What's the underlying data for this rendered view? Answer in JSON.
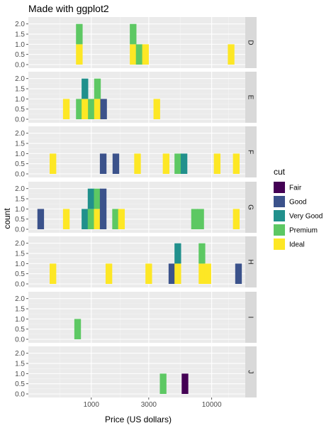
{
  "chart_data": {
    "type": "bar",
    "subtype": "faceted stacked histogram",
    "title": "Made with ggplot2",
    "xlabel": "Price (US dollars)",
    "ylabel": "count",
    "x_scale": "log10",
    "xlim": [
      300,
      19000
    ],
    "x_ticks": [
      1000,
      3000,
      10000
    ],
    "x_tick_labels": [
      "1000",
      "3000",
      "10000"
    ],
    "ylim": [
      0,
      2.2
    ],
    "y_ticks": [
      0,
      0.5,
      1,
      1.5,
      2
    ],
    "y_tick_labels": [
      "0.0",
      "0.5",
      "1.0",
      "1.5",
      "2.0"
    ],
    "facets": [
      "D",
      "E",
      "F",
      "G",
      "H",
      "I",
      "J"
    ],
    "bin_width_log10": 0.055,
    "legend": {
      "title": "cut",
      "position": "right",
      "items": [
        {
          "label": "Fair",
          "color": "#440154"
        },
        {
          "label": "Good",
          "color": "#3B528B"
        },
        {
          "label": "Very Good",
          "color": "#21908C"
        },
        {
          "label": "Premium",
          "color": "#5DC863"
        },
        {
          "label": "Ideal",
          "color": "#FDE725"
        }
      ]
    },
    "series": [
      {
        "facet": "D",
        "price": 795,
        "counts": {
          "Fair": 0,
          "Good": 0,
          "Very Good": 0,
          "Premium": 1,
          "Ideal": 1
        }
      },
      {
        "facet": "D",
        "price": 2225,
        "counts": {
          "Fair": 0,
          "Good": 0,
          "Very Good": 0,
          "Premium": 1,
          "Ideal": 1
        }
      },
      {
        "facet": "D",
        "price": 2500,
        "counts": {
          "Fair": 0,
          "Good": 0,
          "Very Good": 0,
          "Premium": 1,
          "Ideal": 0
        }
      },
      {
        "facet": "D",
        "price": 2820,
        "counts": {
          "Fair": 0,
          "Good": 0,
          "Very Good": 0,
          "Premium": 0,
          "Ideal": 1
        }
      },
      {
        "facet": "D",
        "price": 14500,
        "counts": {
          "Fair": 0,
          "Good": 0,
          "Very Good": 0,
          "Premium": 0,
          "Ideal": 1
        }
      },
      {
        "facet": "E",
        "price": 620,
        "counts": {
          "Fair": 0,
          "Good": 0,
          "Very Good": 0,
          "Premium": 0,
          "Ideal": 1
        }
      },
      {
        "facet": "E",
        "price": 795,
        "counts": {
          "Fair": 0,
          "Good": 0,
          "Very Good": 0,
          "Premium": 1,
          "Ideal": 0
        }
      },
      {
        "facet": "E",
        "price": 885,
        "counts": {
          "Fair": 0,
          "Good": 0,
          "Very Good": 1,
          "Premium": 0,
          "Ideal": 1
        }
      },
      {
        "facet": "E",
        "price": 1000,
        "counts": {
          "Fair": 0,
          "Good": 0,
          "Very Good": 0,
          "Premium": 1,
          "Ideal": 0
        }
      },
      {
        "facet": "E",
        "price": 1125,
        "counts": {
          "Fair": 0,
          "Good": 0,
          "Very Good": 0,
          "Premium": 1,
          "Ideal": 1
        }
      },
      {
        "facet": "E",
        "price": 1265,
        "counts": {
          "Fair": 0,
          "Good": 1,
          "Very Good": 0,
          "Premium": 0,
          "Ideal": 0
        }
      },
      {
        "facet": "E",
        "price": 3500,
        "counts": {
          "Fair": 0,
          "Good": 0,
          "Very Good": 0,
          "Premium": 0,
          "Ideal": 1
        }
      },
      {
        "facet": "F",
        "price": 480,
        "counts": {
          "Fair": 0,
          "Good": 0,
          "Very Good": 0,
          "Premium": 0,
          "Ideal": 1
        }
      },
      {
        "facet": "F",
        "price": 1255,
        "counts": {
          "Fair": 0,
          "Good": 1,
          "Very Good": 0,
          "Premium": 0,
          "Ideal": 0
        }
      },
      {
        "facet": "F",
        "price": 1600,
        "counts": {
          "Fair": 0,
          "Good": 1,
          "Very Good": 0,
          "Premium": 0,
          "Ideal": 0
        }
      },
      {
        "facet": "F",
        "price": 2420,
        "counts": {
          "Fair": 0,
          "Good": 0,
          "Very Good": 0,
          "Premium": 0,
          "Ideal": 1
        }
      },
      {
        "facet": "F",
        "price": 4180,
        "counts": {
          "Fair": 0,
          "Good": 0,
          "Very Good": 0,
          "Premium": 0,
          "Ideal": 1
        }
      },
      {
        "facet": "F",
        "price": 5230,
        "counts": {
          "Fair": 0,
          "Good": 0,
          "Very Good": 0,
          "Premium": 1,
          "Ideal": 0
        }
      },
      {
        "facet": "F",
        "price": 5890,
        "counts": {
          "Fair": 0,
          "Good": 0,
          "Very Good": 1,
          "Premium": 0,
          "Ideal": 0
        }
      },
      {
        "facet": "F",
        "price": 11100,
        "counts": {
          "Fair": 0,
          "Good": 0,
          "Very Good": 0,
          "Premium": 0,
          "Ideal": 1
        }
      },
      {
        "facet": "F",
        "price": 16000,
        "counts": {
          "Fair": 0,
          "Good": 0,
          "Very Good": 0,
          "Premium": 0,
          "Ideal": 1
        }
      },
      {
        "facet": "G",
        "price": 380,
        "counts": {
          "Fair": 0,
          "Good": 1,
          "Very Good": 0,
          "Premium": 0,
          "Ideal": 0
        }
      },
      {
        "facet": "G",
        "price": 620,
        "counts": {
          "Fair": 0,
          "Good": 0,
          "Very Good": 0,
          "Premium": 0,
          "Ideal": 1
        }
      },
      {
        "facet": "G",
        "price": 885,
        "counts": {
          "Fair": 0,
          "Good": 0,
          "Very Good": 1,
          "Premium": 0,
          "Ideal": 0
        }
      },
      {
        "facet": "G",
        "price": 995,
        "counts": {
          "Fair": 0,
          "Good": 0,
          "Very Good": 1,
          "Premium": 1,
          "Ideal": 0
        }
      },
      {
        "facet": "G",
        "price": 1120,
        "counts": {
          "Fair": 0,
          "Good": 0,
          "Very Good": 0,
          "Premium": 1,
          "Ideal": 1
        }
      },
      {
        "facet": "G",
        "price": 1255,
        "counts": {
          "Fair": 0,
          "Good": 2,
          "Very Good": 0,
          "Premium": 0,
          "Ideal": 0
        }
      },
      {
        "facet": "G",
        "price": 1590,
        "counts": {
          "Fair": 0,
          "Good": 0,
          "Very Good": 0,
          "Premium": 1,
          "Ideal": 0
        }
      },
      {
        "facet": "G",
        "price": 1780,
        "counts": {
          "Fair": 0,
          "Good": 0,
          "Very Good": 0,
          "Premium": 0,
          "Ideal": 1
        }
      },
      {
        "facet": "G",
        "price": 7200,
        "counts": {
          "Fair": 0,
          "Good": 0,
          "Very Good": 0,
          "Premium": 1,
          "Ideal": 0
        }
      },
      {
        "facet": "G",
        "price": 8100,
        "counts": {
          "Fair": 0,
          "Good": 0,
          "Very Good": 0,
          "Premium": 1,
          "Ideal": 0
        }
      },
      {
        "facet": "G",
        "price": 16000,
        "counts": {
          "Fair": 0,
          "Good": 0,
          "Very Good": 0,
          "Premium": 0,
          "Ideal": 1
        }
      },
      {
        "facet": "H",
        "price": 480,
        "counts": {
          "Fair": 0,
          "Good": 0,
          "Very Good": 0,
          "Premium": 0,
          "Ideal": 1
        }
      },
      {
        "facet": "H",
        "price": 1400,
        "counts": {
          "Fair": 0,
          "Good": 0,
          "Very Good": 0,
          "Premium": 0,
          "Ideal": 1
        }
      },
      {
        "facet": "H",
        "price": 3000,
        "counts": {
          "Fair": 0,
          "Good": 0,
          "Very Good": 0,
          "Premium": 0,
          "Ideal": 1
        }
      },
      {
        "facet": "H",
        "price": 4670,
        "counts": {
          "Fair": 0,
          "Good": 1,
          "Very Good": 0,
          "Premium": 0,
          "Ideal": 0
        }
      },
      {
        "facet": "H",
        "price": 5230,
        "counts": {
          "Fair": 0,
          "Good": 0,
          "Very Good": 1,
          "Premium": 0,
          "Ideal": 1
        }
      },
      {
        "facet": "H",
        "price": 8300,
        "counts": {
          "Fair": 0,
          "Good": 0,
          "Very Good": 0,
          "Premium": 1,
          "Ideal": 1
        }
      },
      {
        "facet": "H",
        "price": 9300,
        "counts": {
          "Fair": 0,
          "Good": 0,
          "Very Good": 0,
          "Premium": 0,
          "Ideal": 1
        }
      },
      {
        "facet": "H",
        "price": 16700,
        "counts": {
          "Fair": 0,
          "Good": 1,
          "Very Good": 0,
          "Premium": 0,
          "Ideal": 0
        }
      },
      {
        "facet": "I",
        "price": 770,
        "counts": {
          "Fair": 0,
          "Good": 0,
          "Very Good": 0,
          "Premium": 1,
          "Ideal": 0
        }
      },
      {
        "facet": "J",
        "price": 3950,
        "counts": {
          "Fair": 0,
          "Good": 0,
          "Very Good": 0,
          "Premium": 1,
          "Ideal": 0
        }
      },
      {
        "facet": "J",
        "price": 6000,
        "counts": {
          "Fair": 1,
          "Good": 0,
          "Very Good": 0,
          "Premium": 0,
          "Ideal": 0
        }
      }
    ]
  }
}
